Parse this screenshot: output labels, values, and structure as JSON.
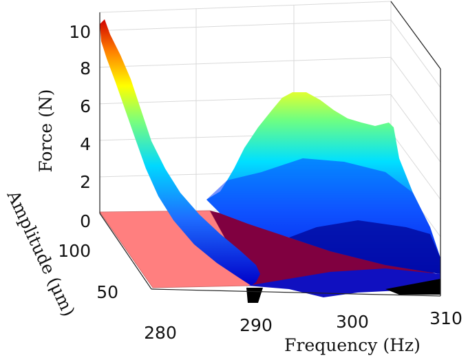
{
  "chart_data": {
    "type": "surface",
    "xlabel": "Frequency (Hz)",
    "ylabel": "Amplitude (μm)",
    "zlabel": "Force (N)",
    "x_ticks": [
      "280",
      "290",
      "300",
      "310"
    ],
    "y_ticks": [
      "50",
      "100"
    ],
    "z_ticks": [
      "0",
      "2",
      "4",
      "6",
      "8",
      "10"
    ],
    "xlim": [
      280,
      310
    ],
    "ylim": [
      0,
      120
    ],
    "zlim": [
      0,
      10.5
    ],
    "grid": true,
    "colormap": "jet",
    "series": [
      {
        "description_key": "left_branch",
        "x": [
          280,
          282,
          284,
          286,
          288,
          289.5
        ],
        "z_peak": [
          10.2,
          8.0,
          5.5,
          3.5,
          1.8,
          0.5
        ]
      },
      {
        "description_key": "right_ridge",
        "x": [
          292,
          295,
          298,
          300,
          303,
          306,
          309
        ],
        "z_peak": [
          2.0,
          5.5,
          7.2,
          6.8,
          5.5,
          5.0,
          1.0
        ]
      }
    ],
    "plane_color": "#ff7f7f",
    "region_color": "#800040"
  }
}
